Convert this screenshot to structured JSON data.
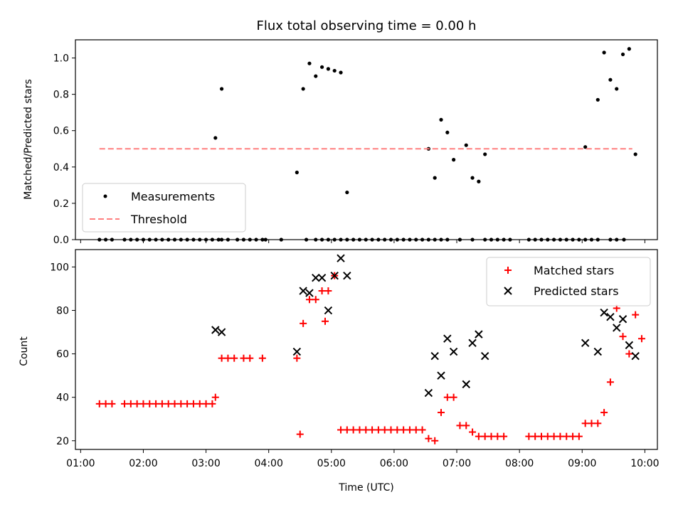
{
  "chart_data": [
    {
      "type": "scatter",
      "title": "Flux total observing time = 0.00 h",
      "xlabel": "",
      "ylabel": "Matched/Predicted stars",
      "ylim": [
        0,
        1.1
      ],
      "yticks": [
        0.0,
        0.2,
        0.4,
        0.6,
        0.8,
        1.0
      ],
      "ytick_labels": [
        "0.0",
        "0.2",
        "0.4",
        "0.6",
        "0.8",
        "1.0"
      ],
      "x_axis": "time of day (UTC)",
      "xlim": [
        "00:55",
        "10:12"
      ],
      "legend_position": "lower left",
      "grid": false,
      "series": [
        {
          "name": "Measurements",
          "marker": "dot",
          "color": "#000000",
          "x": [
            "01:18",
            "01:24",
            "01:30",
            "01:42",
            "01:48",
            "01:54",
            "02:00",
            "02:06",
            "02:12",
            "02:18",
            "02:24",
            "02:30",
            "02:36",
            "02:42",
            "02:48",
            "02:54",
            "03:00",
            "03:06",
            "03:12",
            "03:15",
            "03:21",
            "03:30",
            "03:36",
            "03:42",
            "03:48",
            "03:54",
            "03:57",
            "04:12",
            "04:36",
            "04:45",
            "04:51",
            "04:57",
            "05:03",
            "05:09",
            "05:15",
            "05:21",
            "05:27",
            "05:33",
            "05:39",
            "05:45",
            "05:51",
            "05:57",
            "06:03",
            "06:09",
            "06:15",
            "06:21",
            "06:27",
            "06:33",
            "06:39",
            "06:45",
            "06:51",
            "07:03",
            "07:15",
            "07:27",
            "07:33",
            "07:39",
            "07:45",
            "07:51",
            "08:09",
            "08:15",
            "08:21",
            "08:27",
            "08:33",
            "08:39",
            "08:45",
            "08:51",
            "08:57",
            "09:03",
            "09:09",
            "09:15",
            "09:27",
            "09:33",
            "09:40",
            "03:09",
            "03:15",
            "04:27",
            "04:33",
            "04:39",
            "04:45",
            "04:51",
            "04:57",
            "05:03",
            "05:09",
            "05:15",
            "06:33",
            "06:39",
            "06:45",
            "06:51",
            "06:57",
            "07:09",
            "07:15",
            "07:21",
            "07:27",
            "09:03",
            "09:15",
            "09:21",
            "09:27",
            "09:33",
            "09:39",
            "09:45",
            "09:51"
          ],
          "y": [
            0,
            0,
            0,
            0,
            0,
            0,
            0,
            0,
            0,
            0,
            0,
            0,
            0,
            0,
            0,
            0,
            0,
            0,
            0,
            0,
            0,
            0,
            0,
            0,
            0,
            0,
            0,
            0,
            0,
            0,
            0,
            0,
            0,
            0,
            0,
            0,
            0,
            0,
            0,
            0,
            0,
            0,
            0,
            0,
            0,
            0,
            0,
            0,
            0,
            0,
            0,
            0,
            0,
            0,
            0,
            0,
            0,
            0,
            0,
            0,
            0,
            0,
            0,
            0,
            0,
            0,
            0,
            0,
            0,
            0,
            0,
            0,
            0,
            0.56,
            0.83,
            0.37,
            0.83,
            0.97,
            0.9,
            0.95,
            0.94,
            0.93,
            0.92,
            0.26,
            0.5,
            0.34,
            0.66,
            0.59,
            0.44,
            0.52,
            0.34,
            0.32,
            0.47,
            0.51,
            0.77,
            1.03,
            0.88,
            0.83,
            1.02,
            1.05,
            0.47
          ]
        },
        {
          "name": "Threshold",
          "marker": "dashed-line",
          "color": "#ff7f7f",
          "x": [
            "01:18",
            "09:48"
          ],
          "y": [
            0.5,
            0.5
          ]
        }
      ]
    },
    {
      "type": "scatter",
      "title": "",
      "xlabel": "Time (UTC)",
      "ylabel": "Count",
      "ylim": [
        16,
        108
      ],
      "yticks": [
        20,
        40,
        60,
        80,
        100
      ],
      "ytick_labels": [
        "20",
        "40",
        "60",
        "80",
        "100"
      ],
      "x_axis": "time of day (UTC)",
      "xlim": [
        "00:55",
        "10:12"
      ],
      "xticks": [
        "01:00",
        "02:00",
        "03:00",
        "04:00",
        "05:00",
        "06:00",
        "07:00",
        "08:00",
        "09:00",
        "10:00"
      ],
      "xtick_labels": [
        "01:00",
        "02:00",
        "03:00",
        "04:00",
        "05:00",
        "06:00",
        "07:00",
        "08:00",
        "09:00",
        "10:00"
      ],
      "legend_position": "upper right",
      "grid": false,
      "series": [
        {
          "name": "Matched stars",
          "marker": "plus",
          "color": "#ff0000",
          "x": [
            "01:18",
            "01:24",
            "01:30",
            "01:42",
            "01:48",
            "01:54",
            "02:00",
            "02:06",
            "02:12",
            "02:18",
            "02:24",
            "02:30",
            "02:36",
            "02:42",
            "02:48",
            "02:54",
            "03:00",
            "03:06",
            "03:09",
            "03:15",
            "03:21",
            "03:27",
            "03:36",
            "03:42",
            "03:54",
            "04:27",
            "04:30",
            "04:33",
            "04:39",
            "04:45",
            "04:51",
            "04:54",
            "04:57",
            "05:03",
            "05:09",
            "05:15",
            "05:21",
            "05:27",
            "05:33",
            "05:39",
            "05:45",
            "05:51",
            "05:57",
            "06:03",
            "06:09",
            "06:15",
            "06:21",
            "06:27",
            "06:33",
            "06:39",
            "06:45",
            "06:51",
            "06:57",
            "07:03",
            "07:09",
            "07:15",
            "07:21",
            "07:27",
            "07:33",
            "07:39",
            "07:45",
            "08:09",
            "08:15",
            "08:21",
            "08:27",
            "08:33",
            "08:39",
            "08:45",
            "08:51",
            "08:57",
            "09:03",
            "09:09",
            "09:15",
            "09:21",
            "09:27",
            "09:33",
            "09:39",
            "09:45",
            "09:51",
            "09:57"
          ],
          "y": [
            37,
            37,
            37,
            37,
            37,
            37,
            37,
            37,
            37,
            37,
            37,
            37,
            37,
            37,
            37,
            37,
            37,
            37,
            40,
            58,
            58,
            58,
            58,
            58,
            58,
            58,
            23,
            74,
            85,
            85,
            89,
            75,
            89,
            96,
            25,
            25,
            25,
            25,
            25,
            25,
            25,
            25,
            25,
            25,
            25,
            25,
            25,
            25,
            21,
            20,
            33,
            40,
            40,
            27,
            27,
            24,
            22,
            22,
            22,
            22,
            22,
            22,
            22,
            22,
            22,
            22,
            22,
            22,
            22,
            22,
            28,
            28,
            28,
            33,
            47,
            81,
            68,
            60,
            78,
            67
          ]
        },
        {
          "name": "Predicted stars",
          "marker": "x",
          "color": "#000000",
          "x": [
            "03:09",
            "03:15",
            "04:27",
            "04:33",
            "04:39",
            "04:45",
            "04:51",
            "04:57",
            "05:03",
            "05:09",
            "05:15",
            "06:33",
            "06:39",
            "06:45",
            "06:51",
            "06:57",
            "07:09",
            "07:15",
            "07:21",
            "07:27",
            "09:03",
            "09:15",
            "09:21",
            "09:27",
            "09:33",
            "09:39",
            "09:45",
            "09:51"
          ],
          "y": [
            71,
            70,
            61,
            89,
            88,
            95,
            95,
            80,
            96,
            104,
            96,
            42,
            59,
            50,
            67,
            61,
            46,
            65,
            69,
            59,
            65,
            61,
            79,
            77,
            72,
            76,
            64,
            59
          ]
        }
      ]
    }
  ]
}
